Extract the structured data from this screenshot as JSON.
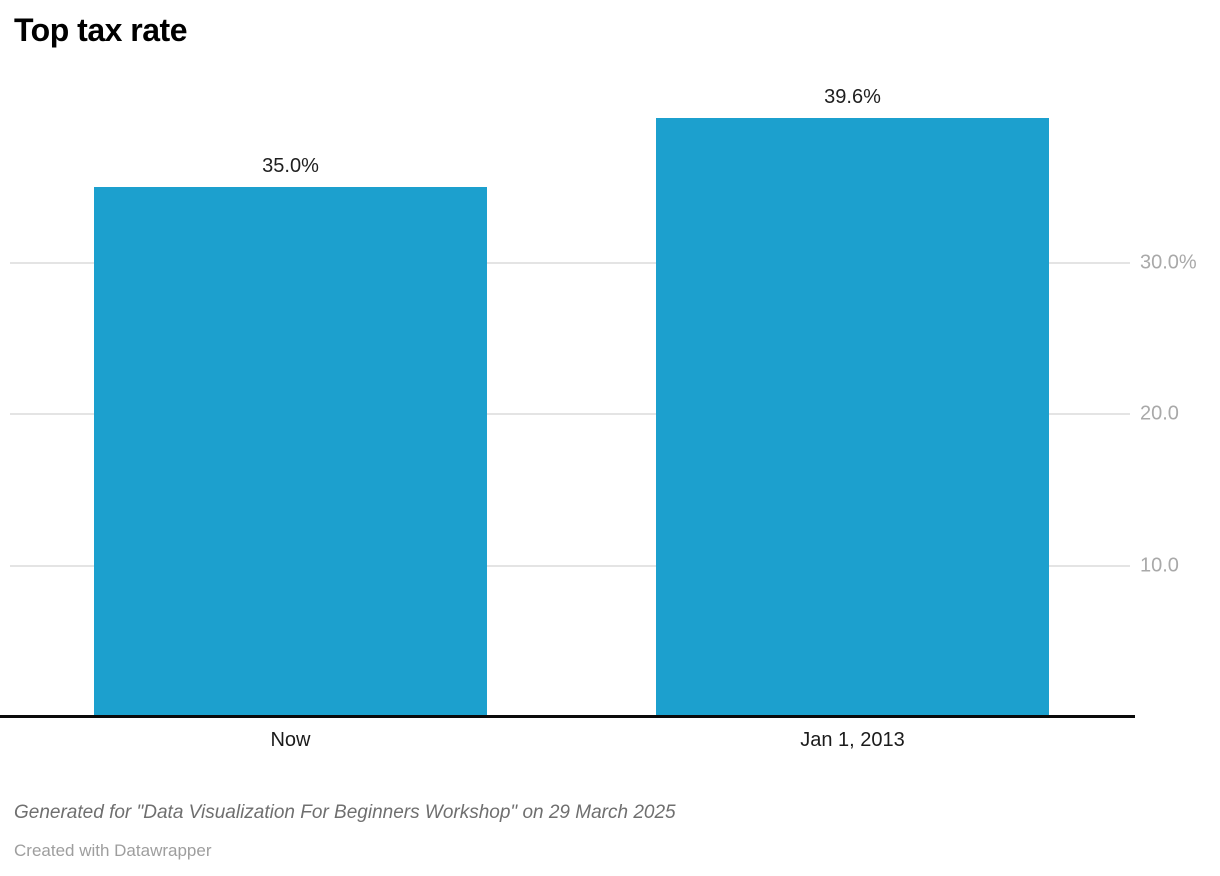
{
  "title": "Top tax rate",
  "chart_data": {
    "type": "bar",
    "title": "Top tax rate",
    "categories": [
      "Now",
      "Jan 1, 2013"
    ],
    "values": [
      35.0,
      39.6
    ],
    "value_labels": [
      "35.0%",
      "39.6%"
    ],
    "xlabel": "",
    "ylabel": "",
    "ylim": [
      0,
      40
    ],
    "yticks": [
      {
        "value": 30,
        "label": "30.0%"
      },
      {
        "value": 20,
        "label": "20.0"
      },
      {
        "value": 10,
        "label": "10.0"
      }
    ],
    "grid": true,
    "legend": "none",
    "tick_label_position": "right",
    "bar_color": "#1CA0CE"
  },
  "footer": {
    "note": "Generated for \"Data Visualization For Beginners Workshop\" on 29 March 2025",
    "credit": "Created with Datawrapper"
  },
  "colors": {
    "bar": "#1CA0CE",
    "gridline": "#e4e4e4",
    "baseline": "#0a0a0a",
    "tick_label": "#a9a9a9",
    "value_label": "#1f1f1f",
    "category_label": "#1b1b1b",
    "title": "#000000",
    "footer_note": "#6f6f6f",
    "footer_credit": "#9e9e9e",
    "background": "#ffffff"
  }
}
